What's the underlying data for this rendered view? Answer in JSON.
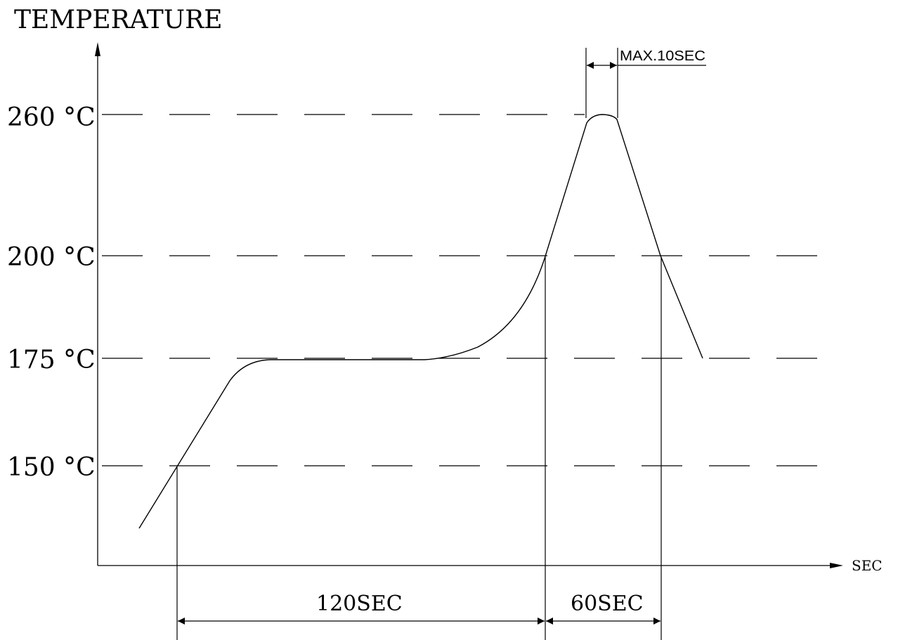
{
  "y_axis_label": "TEMPERATURE",
  "x_axis_label": "SEC",
  "temperature_levels": [
    "260 °C",
    "200 °C",
    "175 °C",
    "150 °C"
  ],
  "durations": {
    "peak": "MAX.10SEC",
    "preheat": "120SEC",
    "reflow": "60SEC"
  },
  "colors": {
    "line": "#000000",
    "background": "#ffffff"
  }
}
